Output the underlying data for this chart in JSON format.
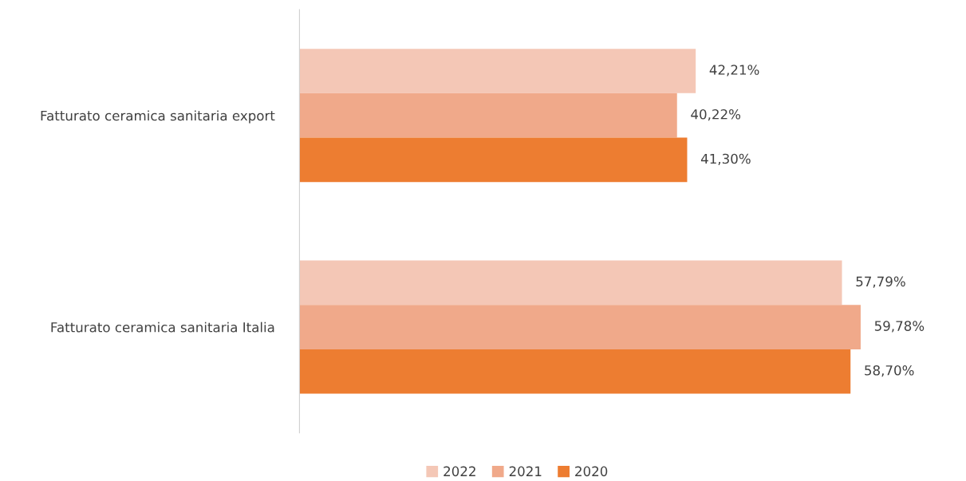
{
  "chart_data": {
    "type": "bar",
    "orientation": "horizontal",
    "categories": [
      "Fatturato ceramica sanitaria export",
      "Fatturato ceramica sanitaria Italia"
    ],
    "series": [
      {
        "name": "2022",
        "color": "#f4c7b6",
        "values": [
          42.21,
          57.79
        ],
        "value_labels": [
          "42,21%",
          "57,79%"
        ]
      },
      {
        "name": "2021",
        "color": "#f0a98a",
        "values": [
          40.22,
          59.78
        ],
        "value_labels": [
          "40,22%",
          "59,78%"
        ]
      },
      {
        "name": "2020",
        "color": "#ed7d31",
        "values": [
          41.3,
          58.7
        ],
        "value_labels": [
          "41,30%",
          "58,70%"
        ]
      }
    ],
    "grid": false,
    "legend": "bottom",
    "tick_labels": "y"
  }
}
